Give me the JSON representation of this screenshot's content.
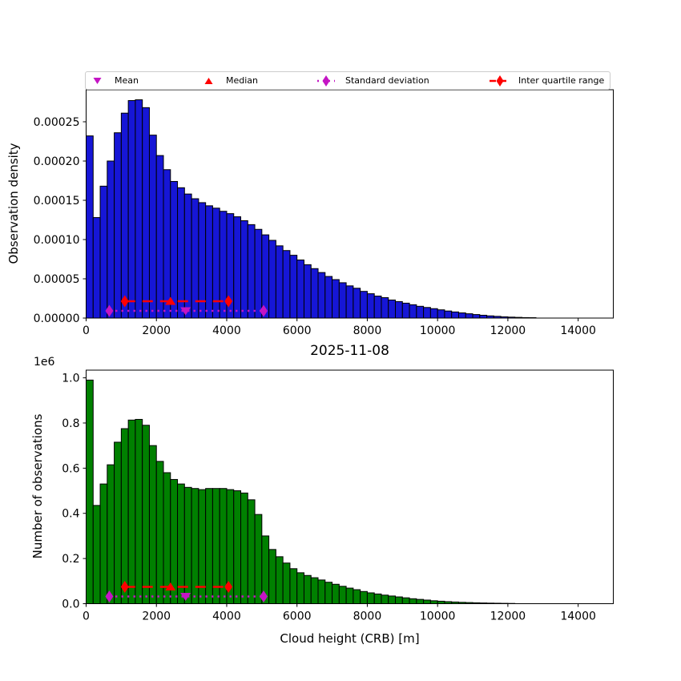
{
  "title": "2025-11-08",
  "legend": {
    "items": [
      {
        "label": "Mean",
        "marker": "triangle-down-icon",
        "color": "#c415c4"
      },
      {
        "label": "Median",
        "marker": "triangle-up-icon",
        "color": "#ff0000"
      },
      {
        "label": "Standard deviation",
        "marker": "diamond-dotted-icon",
        "color": "#c415c4"
      },
      {
        "label": "Inter quartile range",
        "marker": "diamond-dashed-icon",
        "color": "#ff0000"
      }
    ]
  },
  "stats": {
    "mean": 2830,
    "median": 2400,
    "std_low": 660,
    "std_high": 5050,
    "q1": 1100,
    "q3": 4050,
    "mean_color": "#c415c4",
    "median_color": "#ff0000",
    "std_color": "#c415c4",
    "iqr_color": "#ff0000"
  },
  "chart_data": [
    {
      "type": "bar",
      "name": "observation-density-histogram",
      "ylabel": "Observation density",
      "xlabel": "",
      "bar_color": "#1616d6",
      "bar_edge_color": "#000000",
      "bin_start": 0,
      "bin_width": 200,
      "xlim": [
        0,
        15000
      ],
      "ylim": [
        0,
        0.0002908
      ],
      "x_ticks": [
        0,
        2000,
        4000,
        6000,
        8000,
        10000,
        12000,
        14000
      ],
      "x_tick_labels": [
        "0",
        "2000",
        "4000",
        "6000",
        "8000",
        "10000",
        "12000",
        "14000"
      ],
      "y_ticks": [
        0,
        5e-05,
        0.0001,
        0.00015,
        0.0002,
        0.00025
      ],
      "y_tick_labels": [
        "0.00000",
        "0.00005",
        "0.00010",
        "0.00015",
        "0.00020",
        "0.00025"
      ],
      "values": [
        0.000232,
        0.000128,
        0.000168,
        0.0002,
        0.000236,
        0.000261,
        0.000277,
        0.000278,
        0.000268,
        0.000233,
        0.000207,
        0.000189,
        0.000174,
        0.000166,
        0.000158,
        0.000152,
        0.000147,
        0.000143,
        0.00014,
        0.000136,
        0.000133,
        0.000129,
        0.000124,
        0.000119,
        0.000113,
        0.000106,
        9.9e-05,
        9.2e-05,
        8.6e-05,
        8e-05,
        7.4e-05,
        6.8e-05,
        6.3e-05,
        5.8e-05,
        5.3e-05,
        4.9e-05,
        4.5e-05,
        4.1e-05,
        3.8e-05,
        3.4e-05,
        3.1e-05,
        2.8e-05,
        2.6e-05,
        2.3e-05,
        2.1e-05,
        1.9e-05,
        1.7e-05,
        1.5e-05,
        1.35e-05,
        1.2e-05,
        1.05e-05,
        9e-06,
        7.8e-06,
        6.6e-06,
        5.5e-06,
        4.5e-06,
        3.6e-06,
        2.8e-06,
        2.2e-06,
        1.6e-06,
        1.2e-06,
        9e-07,
        6e-07,
        5e-07,
        3e-07,
        2e-07,
        1.5e-07,
        1e-07,
        8e-08,
        5e-08,
        3e-08,
        2e-08,
        1e-08,
        1e-08,
        0
      ]
    },
    {
      "type": "bar",
      "name": "observation-count-histogram",
      "title": "2025-11-08",
      "ylabel": "Number of observations",
      "xlabel": "Cloud height (CRB) [m]",
      "y_offset_label": "1e6",
      "bar_color": "#008000",
      "bar_edge_color": "#000000",
      "bin_start": 0,
      "bin_width": 200,
      "xlim": [
        0,
        15000
      ],
      "ylim": [
        0,
        1034000
      ],
      "x_ticks": [
        0,
        2000,
        4000,
        6000,
        8000,
        10000,
        12000,
        14000
      ],
      "x_tick_labels": [
        "0",
        "2000",
        "4000",
        "6000",
        "8000",
        "10000",
        "12000",
        "14000"
      ],
      "y_ticks": [
        0,
        200000,
        400000,
        600000,
        800000,
        1000000
      ],
      "y_tick_labels": [
        "0.0",
        "0.2",
        "0.4",
        "0.6",
        "0.8",
        "1.0"
      ],
      "values": [
        990000,
        435000,
        530000,
        615000,
        715000,
        775000,
        813000,
        816000,
        790000,
        700000,
        630000,
        580000,
        550000,
        530000,
        515000,
        510000,
        505000,
        510000,
        510000,
        510000,
        505000,
        500000,
        490000,
        460000,
        395000,
        300000,
        240000,
        208000,
        180000,
        155000,
        137000,
        125000,
        115000,
        105000,
        95000,
        86000,
        77000,
        69000,
        62000,
        54000,
        48000,
        43000,
        38000,
        34000,
        30000,
        26000,
        22000,
        19000,
        16000,
        13000,
        11000,
        9000,
        7500,
        6000,
        5000,
        4000,
        3200,
        2500,
        2000,
        1500,
        1100,
        800,
        600,
        400,
        300,
        200,
        150,
        100,
        80,
        50,
        30,
        20,
        10,
        5,
        0
      ]
    }
  ]
}
